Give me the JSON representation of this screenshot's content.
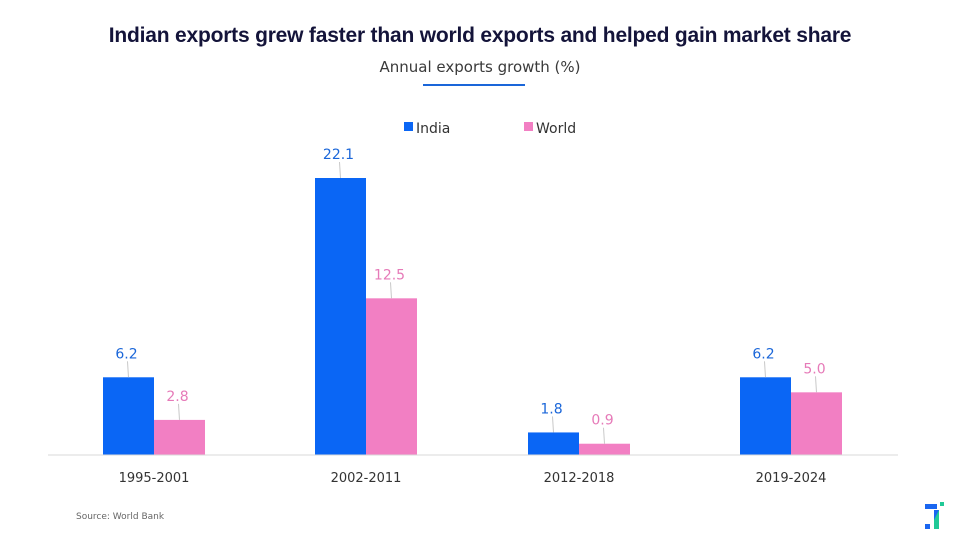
{
  "chart_data": {
    "type": "bar",
    "title": "Indian exports grew faster than world exports and helped gain market share",
    "subtitle": "Annual exports growth (%)",
    "xlabel": "",
    "ylabel": "",
    "categories": [
      "1995-2001",
      "2002-2011",
      "2012-2018",
      "2019-2024"
    ],
    "series": [
      {
        "name": "India",
        "color": "#0a66f5",
        "values": [
          6.2,
          22.1,
          1.8,
          6.2
        ],
        "labels": [
          "6.2",
          "22.1",
          "1.8",
          "6.2"
        ]
      },
      {
        "name": "World",
        "color": "#f27fc3",
        "values": [
          2.8,
          12.5,
          0.9,
          5.0
        ],
        "labels": [
          "2.8",
          "12.5",
          "0.9",
          "5.0"
        ]
      }
    ],
    "ylim": [
      0,
      22.1
    ],
    "grid": false,
    "legend_position": "top-center",
    "label_colors": {
      "India": "#1a66d9",
      "World": "#e67ab8"
    }
  },
  "header": {
    "title": "Indian exports grew faster than world exports and helped gain market share",
    "subtitle": "Annual exports growth (%)",
    "accent_color": "#1a66d9"
  },
  "footer": {
    "source": "Source: World Bank",
    "logo_icon": "brand-logo-icon"
  }
}
